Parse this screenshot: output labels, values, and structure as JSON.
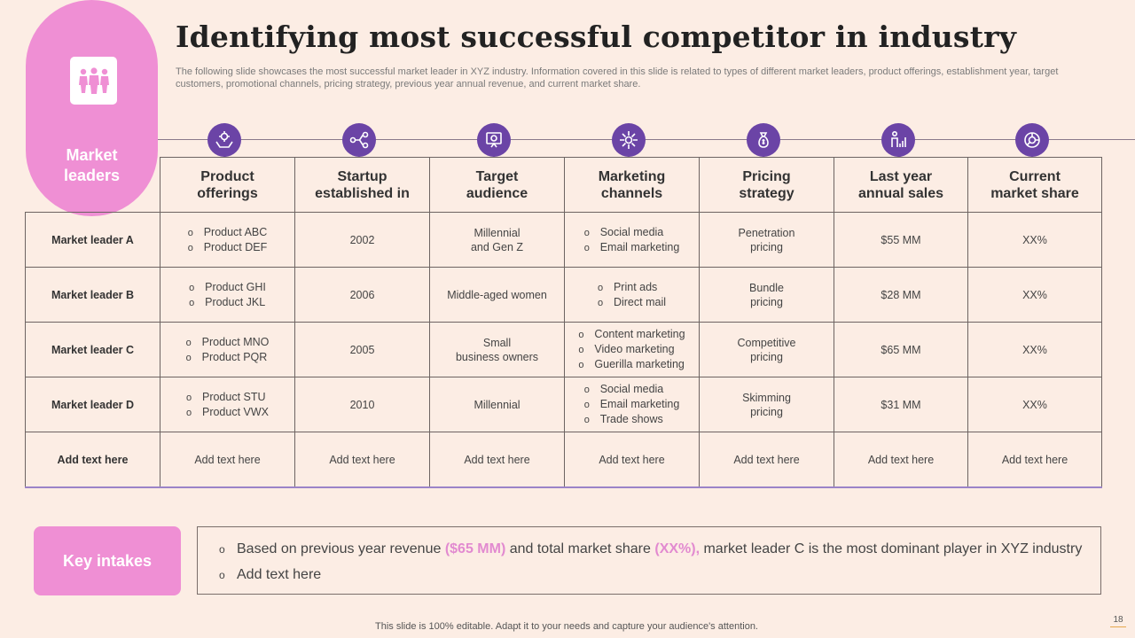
{
  "slide": {
    "title": "Identifying most successful competitor in industry",
    "subtitle": "The following slide showcases the most successful market leader in XYZ industry. Information covered in this slide is related to types of different market leaders, product offerings, establishment year, target customers, promotional channels, pricing strategy, previous year annual revenue, and current market share.",
    "side_label_line1": "Market",
    "side_label_line2": "leaders",
    "accent_color": "#ef8fd4",
    "icon_circle_color": "#6b44a6",
    "background_color": "#fcede4"
  },
  "table": {
    "headers": [
      {
        "line1": "Product",
        "line2": "offerings",
        "icon": "hand-gear-icon"
      },
      {
        "line1": "Startup",
        "line2": "established in",
        "icon": "startup-flow-icon"
      },
      {
        "line1": "Target",
        "line2": "audience",
        "icon": "target-audience-icon"
      },
      {
        "line1": "Marketing",
        "line2": "channels",
        "icon": "marketing-network-icon"
      },
      {
        "line1": "Pricing",
        "line2": "strategy",
        "icon": "money-bag-icon"
      },
      {
        "line1": "Last year",
        "line2": "annual sales",
        "icon": "sales-chart-icon"
      },
      {
        "line1": "Current",
        "line2": "market share",
        "icon": "market-share-icon"
      }
    ],
    "rows": [
      {
        "label": "Market leader A",
        "products": [
          "Product ABC",
          "Product DEF"
        ],
        "established": "2002",
        "audience_line1": "Millennial",
        "audience_line2": "and Gen Z",
        "channels": [
          "Social media",
          "Email marketing"
        ],
        "pricing_line1": "Penetration",
        "pricing_line2": "pricing",
        "sales": "$55 MM",
        "share": "XX%"
      },
      {
        "label": "Market leader B",
        "products": [
          "Product GHI",
          "Product JKL"
        ],
        "established": "2006",
        "audience_line1": "Middle-aged  women",
        "audience_line2": "",
        "channels": [
          "Print ads",
          "Direct mail"
        ],
        "pricing_line1": "Bundle",
        "pricing_line2": "pricing",
        "sales": "$28 MM",
        "share": "XX%"
      },
      {
        "label": "Market leader C",
        "products": [
          "Product MNO",
          "Product PQR"
        ],
        "established": "2005",
        "audience_line1": "Small",
        "audience_line2": "business owners",
        "channels": [
          "Content marketing",
          "Video marketing",
          "Guerilla marketing"
        ],
        "pricing_line1": "Competitive",
        "pricing_line2": "pricing",
        "sales": "$65 MM",
        "share": "XX%"
      },
      {
        "label": "Market leader D",
        "products": [
          "Product STU",
          "Product VWX"
        ],
        "established": "2010",
        "audience_line1": "Millennial",
        "audience_line2": "",
        "channels": [
          "Social media",
          "Email marketing",
          "Trade shows"
        ],
        "pricing_line1": "Skimming",
        "pricing_line2": "pricing",
        "sales": "$31 MM",
        "share": "XX%"
      }
    ],
    "add_row_label": "Add text here",
    "add_row_cell": "Add text here"
  },
  "key_intakes": {
    "label": "Key intakes",
    "point1_pre": "Based on previous year revenue ",
    "point1_hl1": "($65 MM)",
    "point1_mid": " and total market share ",
    "point1_hl2": "(XX%),",
    "point1_post": " market leader C is the most dominant player in XYZ industry",
    "point2": "Add text here"
  },
  "footer": {
    "note": "This slide is 100% editable. Adapt it to your needs and capture your audience's attention.",
    "page_number": "18"
  }
}
